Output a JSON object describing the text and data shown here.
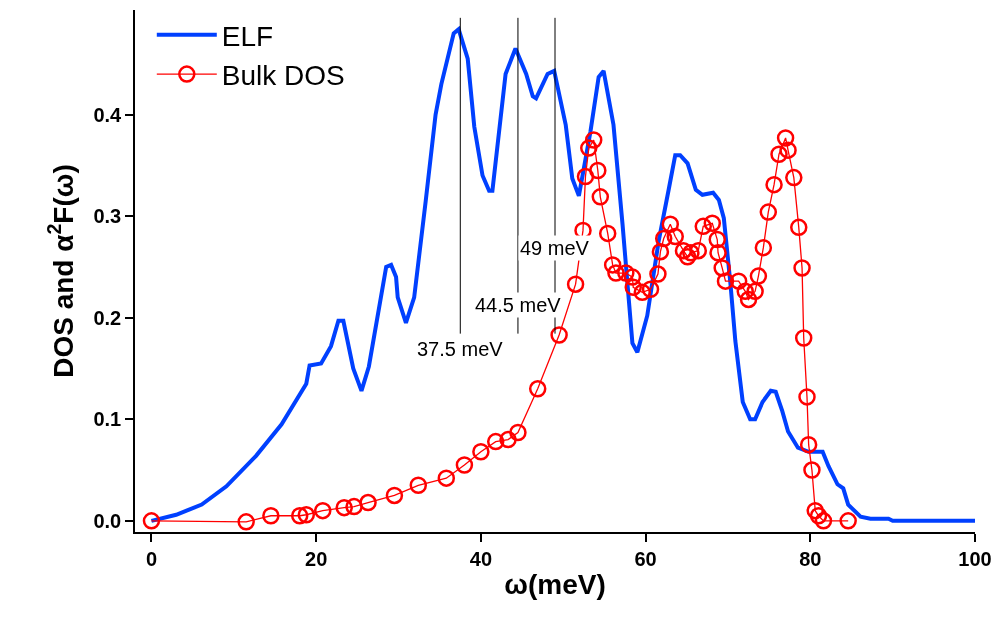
{
  "chart_data": {
    "type": "line",
    "xlabel": "ω(meV)",
    "ylabel": "DOS and α$^{2}$F(ω)",
    "xlim": [
      -2,
      100
    ],
    "xticks": [
      0,
      20,
      40,
      60,
      80,
      100
    ],
    "ylim": [
      -0.011,
      0.503
    ],
    "yticks": [
      {
        "value": 0,
        "label": "0.0"
      },
      0.1,
      0.2,
      0.3,
      0.4
    ],
    "legend": "top left",
    "series": [
      {
        "name": "ELF",
        "color": "#0040ff",
        "marker": "none",
        "line_style": "solid",
        "x": [
          0,
          3,
          6.1,
          9.1,
          12.7,
          15.8,
          18.8,
          19.2,
          20.6,
          21.8,
          22.7,
          23.3,
          24.5,
          25.5,
          26.4,
          28.5,
          29.1,
          29.7,
          29.9,
          30.9,
          31.9,
          33.3,
          34.5,
          35.2,
          36.7,
          37.3,
          38.4,
          39.2,
          40.2,
          41,
          41.4,
          43,
          44.2,
          45.5,
          46.3,
          46.7,
          48.1,
          48.9,
          50.3,
          51.1,
          51.9,
          53.3,
          54.3,
          54.9,
          56.1,
          57.2,
          58.4,
          59,
          60.2,
          61.6,
          62.8,
          63.6,
          64.2,
          65.1,
          66.1,
          66.9,
          68.2,
          68.9,
          69.5,
          70.3,
          70.9,
          71.8,
          72.7,
          73.3,
          74.2,
          75.2,
          75.8,
          76.6,
          77.3,
          78.5,
          79.8,
          81.5,
          82.2,
          83.3,
          84,
          84.6,
          86.1,
          87.3,
          89.5,
          90,
          100
        ],
        "values": [
          0,
          0.006,
          0.016,
          0.034,
          0.064,
          0.095,
          0.135,
          0.153,
          0.155,
          0.172,
          0.197,
          0.197,
          0.15,
          0.128,
          0.152,
          0.25,
          0.252,
          0.24,
          0.22,
          0.195,
          0.22,
          0.315,
          0.4,
          0.43,
          0.48,
          0.484,
          0.455,
          0.388,
          0.34,
          0.325,
          0.325,
          0.44,
          0.465,
          0.44,
          0.418,
          0.416,
          0.44,
          0.443,
          0.39,
          0.337,
          0.32,
          0.383,
          0.437,
          0.443,
          0.39,
          0.292,
          0.175,
          0.166,
          0.202,
          0.276,
          0.326,
          0.36,
          0.36,
          0.352,
          0.326,
          0.321,
          0.323,
          0.316,
          0.298,
          0.234,
          0.177,
          0.117,
          0.1,
          0.1,
          0.117,
          0.128,
          0.127,
          0.108,
          0.088,
          0.072,
          0.068,
          0.068,
          0.054,
          0.036,
          0.032,
          0.016,
          0.004,
          0.002,
          0.002,
          0,
          0
        ]
      },
      {
        "name": "Bulk DOS",
        "color": "#ff0000",
        "marker": "circle",
        "line_style": "solid",
        "x": [
          0,
          11.5,
          14.5,
          18,
          18.8,
          20.8,
          23.4,
          24.6,
          26.3,
          29.5,
          32.4,
          35.8,
          38,
          40,
          41.8,
          43.3,
          44.5,
          46.9,
          49.5,
          51.5,
          52.4,
          52.7,
          53.1,
          53.7,
          54.2,
          54.5,
          55.4,
          56,
          56.4,
          57.6,
          58.4,
          58.5,
          59.6,
          60.6,
          61.5,
          61.8,
          62.2,
          63,
          63.6,
          64.6,
          65.1,
          65.5,
          66.4,
          67,
          68.1,
          68.7,
          68.8,
          69.3,
          69.7,
          71.3,
          72.1,
          72.5,
          73.3,
          73.7,
          74.3,
          74.9,
          75.6,
          76.2,
          77,
          77.3,
          78,
          78.6,
          79,
          79.2,
          79.6,
          79.8,
          80.2,
          80.6,
          81,
          81.6,
          84.6
        ],
        "values": [
          0,
          -0.001,
          0.005,
          0.005,
          0.006,
          0.01,
          0.013,
          0.014,
          0.018,
          0.025,
          0.035,
          0.042,
          0.055,
          0.068,
          0.078,
          0.08,
          0.087,
          0.13,
          0.183,
          0.233,
          0.286,
          0.339,
          0.367,
          0.375,
          0.345,
          0.319,
          0.283,
          0.252,
          0.244,
          0.244,
          0.24,
          0.23,
          0.225,
          0.228,
          0.243,
          0.265,
          0.278,
          0.292,
          0.28,
          0.266,
          0.26,
          0.264,
          0.266,
          0.29,
          0.293,
          0.277,
          0.264,
          0.249,
          0.236,
          0.236,
          0.226,
          0.218,
          0.226,
          0.241,
          0.269,
          0.304,
          0.331,
          0.361,
          0.377,
          0.365,
          0.338,
          0.289,
          0.249,
          0.18,
          0.122,
          0.075,
          0.05,
          0.01,
          0.005,
          0,
          0
        ]
      }
    ],
    "ref_lines": [
      {
        "axis": "x",
        "value": 37.5,
        "color": "#000000",
        "label": "37.5 meV"
      },
      {
        "axis": "x",
        "value": 44.5,
        "color": "#000000",
        "label": "44.5 meV"
      },
      {
        "axis": "x",
        "value": 49,
        "color": "#000000",
        "label": "49 meV"
      }
    ]
  }
}
